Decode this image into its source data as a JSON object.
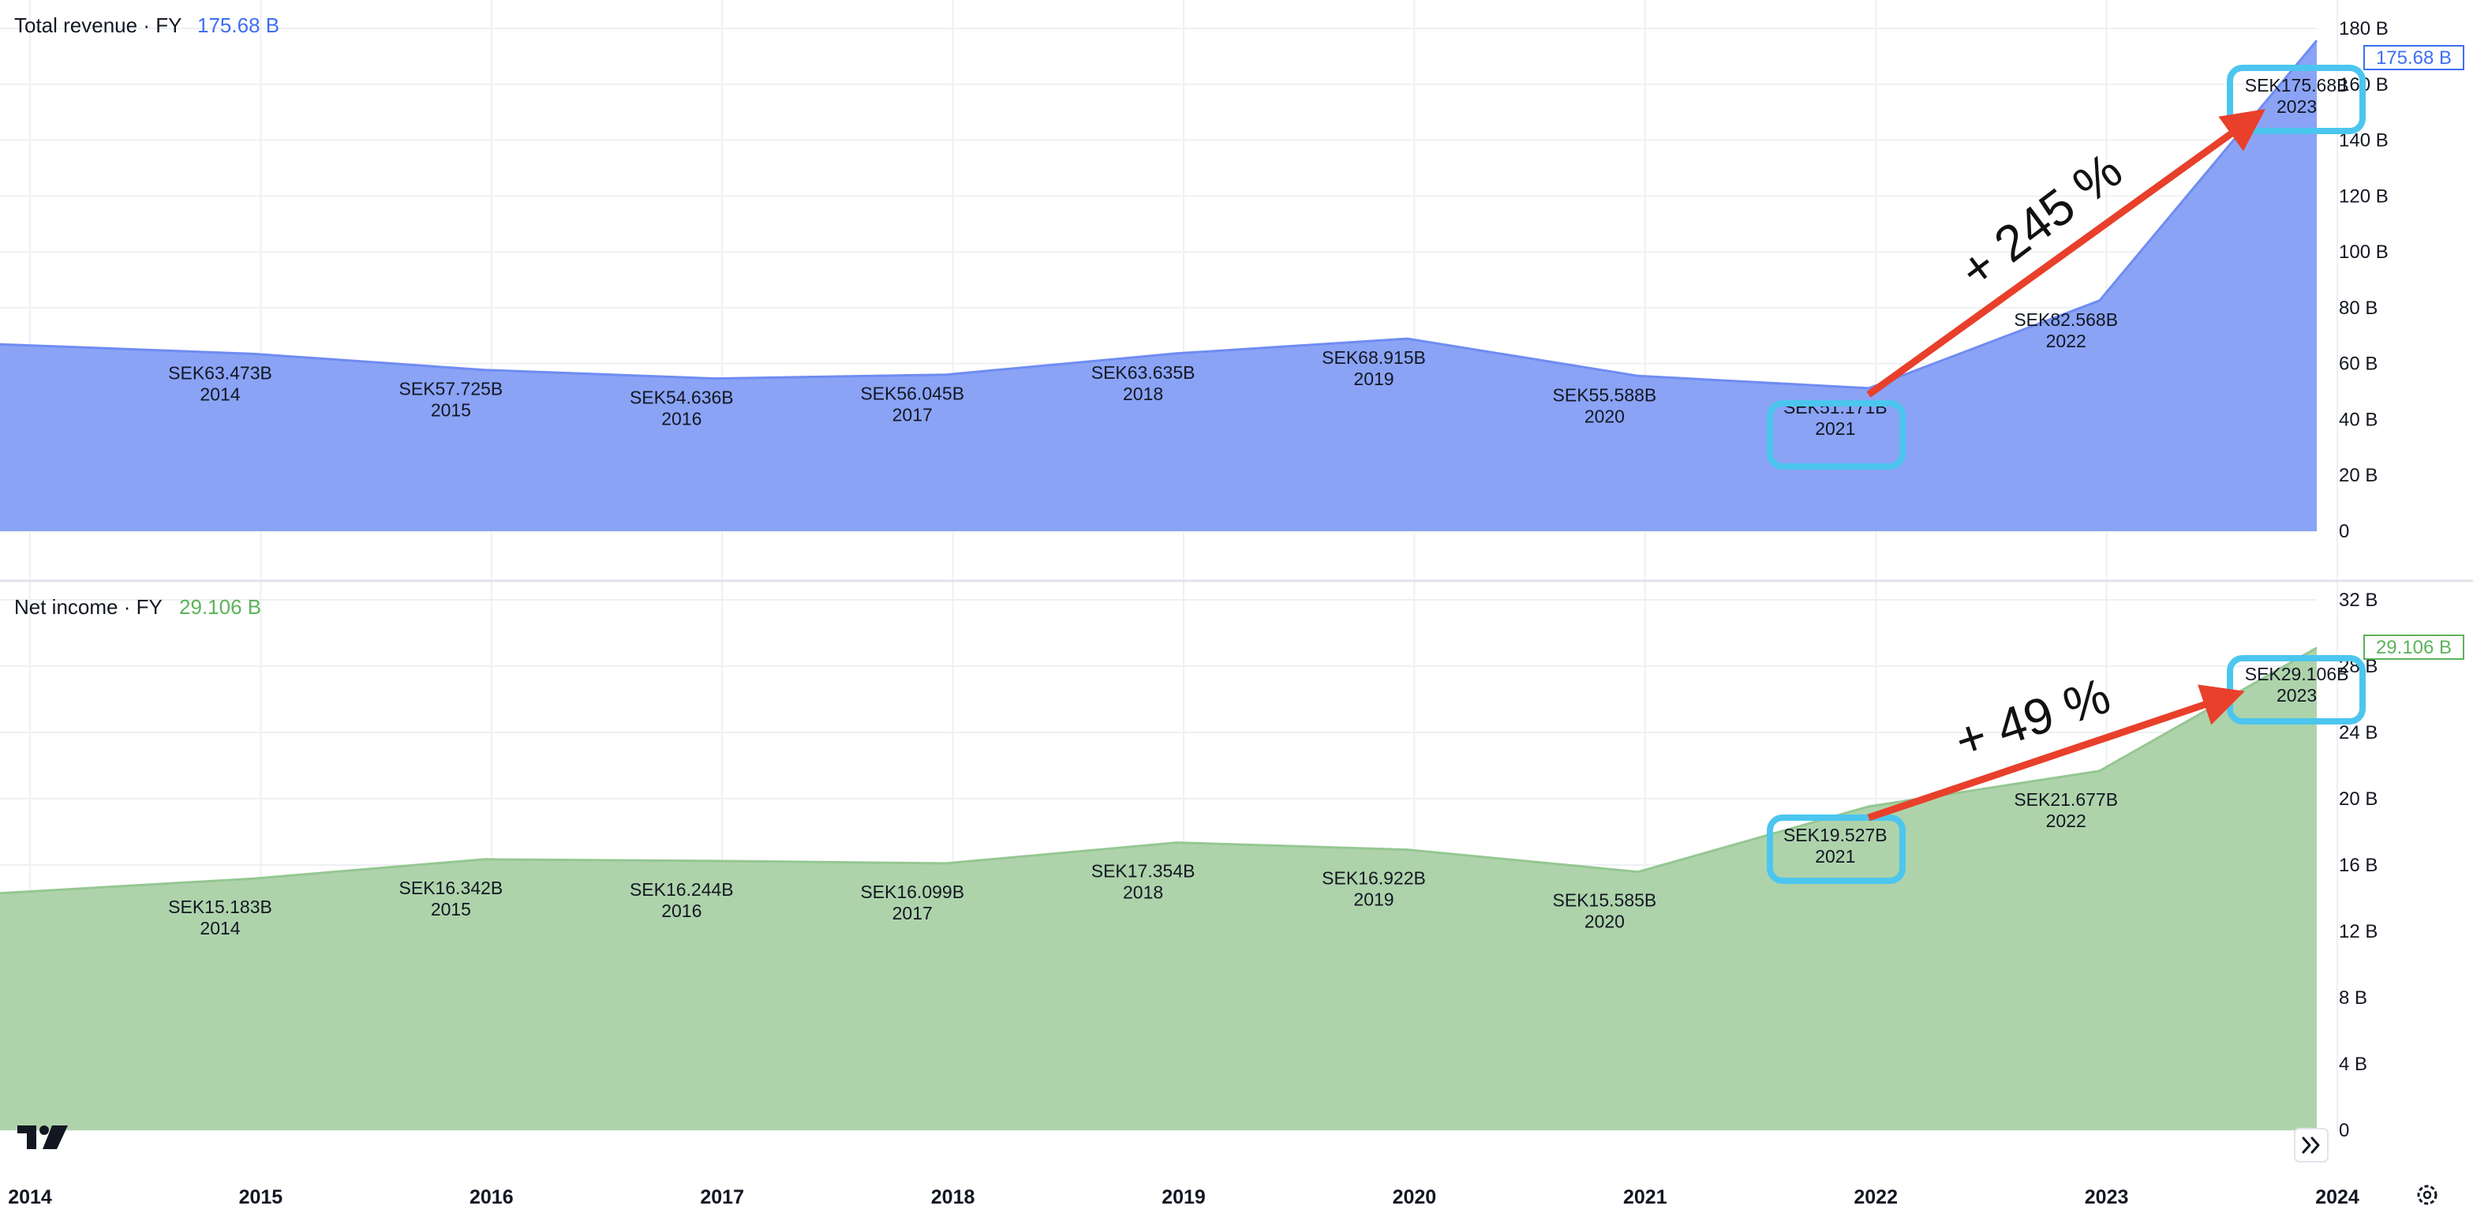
{
  "colors": {
    "revenue_fill": "#8aa3f5",
    "revenue_line": "#6f8cf2",
    "revenue_text": "#3e6ff2",
    "income_fill": "#aed3ab",
    "income_line": "#95c792",
    "income_text": "#5cb35a",
    "grid": "#eef0f3",
    "highlight": "#4cc6ee",
    "arrow": "#e8402a"
  },
  "chart_data": [
    {
      "type": "area",
      "title": "Total revenue · FY",
      "last_value": "175.68 B",
      "price_tag": "175.68 B",
      "x": [
        2013.9,
        2014,
        2015,
        2016,
        2017,
        2018,
        2019,
        2020,
        2021,
        2022,
        2023
      ],
      "values": [
        66.9,
        63.473,
        57.725,
        54.636,
        56.045,
        63.635,
        68.915,
        55.588,
        51.171,
        82.568,
        175.68
      ],
      "data_labels": [
        {
          "value": "SEK63.473B",
          "year": "2014"
        },
        {
          "value": "SEK57.725B",
          "year": "2015"
        },
        {
          "value": "SEK54.636B",
          "year": "2016"
        },
        {
          "value": "SEK56.045B",
          "year": "2017"
        },
        {
          "value": "SEK63.635B",
          "year": "2018"
        },
        {
          "value": "SEK68.915B",
          "year": "2019"
        },
        {
          "value": "SEK55.588B",
          "year": "2020"
        },
        {
          "value": "SEK51.171B",
          "year": "2021"
        },
        {
          "value": "SEK82.568B",
          "year": "2022"
        },
        {
          "value": "SEK175.68B",
          "year": "2023"
        }
      ],
      "y_ticks": [
        "180 B",
        "160 B",
        "140 B",
        "120 B",
        "100 B",
        "80 B",
        "60 B",
        "40 B",
        "20 B",
        "0"
      ],
      "ylim": [
        0,
        180
      ],
      "highlighted_years": [
        "2021",
        "2023"
      ],
      "annotation": "+ 245 %"
    },
    {
      "type": "area",
      "title": "Net income · FY",
      "last_value": "29.106 B",
      "price_tag": "29.106 B",
      "x": [
        2013.9,
        2014,
        2015,
        2016,
        2017,
        2018,
        2019,
        2020,
        2021,
        2022,
        2023
      ],
      "values": [
        14.3,
        15.183,
        16.342,
        16.244,
        16.099,
        17.354,
        16.922,
        15.585,
        19.527,
        21.677,
        29.106
      ],
      "data_labels": [
        {
          "value": "SEK15.183B",
          "year": "2014"
        },
        {
          "value": "SEK16.342B",
          "year": "2015"
        },
        {
          "value": "SEK16.244B",
          "year": "2016"
        },
        {
          "value": "SEK16.099B",
          "year": "2017"
        },
        {
          "value": "SEK17.354B",
          "year": "2018"
        },
        {
          "value": "SEK16.922B",
          "year": "2019"
        },
        {
          "value": "SEK15.585B",
          "year": "2020"
        },
        {
          "value": "SEK19.527B",
          "year": "2021"
        },
        {
          "value": "SEK21.677B",
          "year": "2022"
        },
        {
          "value": "SEK29.106B",
          "year": "2023"
        }
      ],
      "y_ticks": [
        "32 B",
        "28 B",
        "24 B",
        "20 B",
        "16 B",
        "12 B",
        "8 B",
        "4 B",
        "0"
      ],
      "ylim": [
        0,
        32
      ],
      "highlighted_years": [
        "2021",
        "2023"
      ],
      "annotation": "+ 49 %"
    }
  ],
  "x_axis": {
    "ticks": [
      "2014",
      "2015",
      "2016",
      "2017",
      "2018",
      "2019",
      "2020",
      "2021",
      "2022",
      "2023",
      "2024"
    ]
  },
  "controls": {
    "logo_icon": "tradingview-logo-icon",
    "scroll_icon": "double-chevron-right-icon",
    "settings_icon": "settings-gear-icon"
  }
}
